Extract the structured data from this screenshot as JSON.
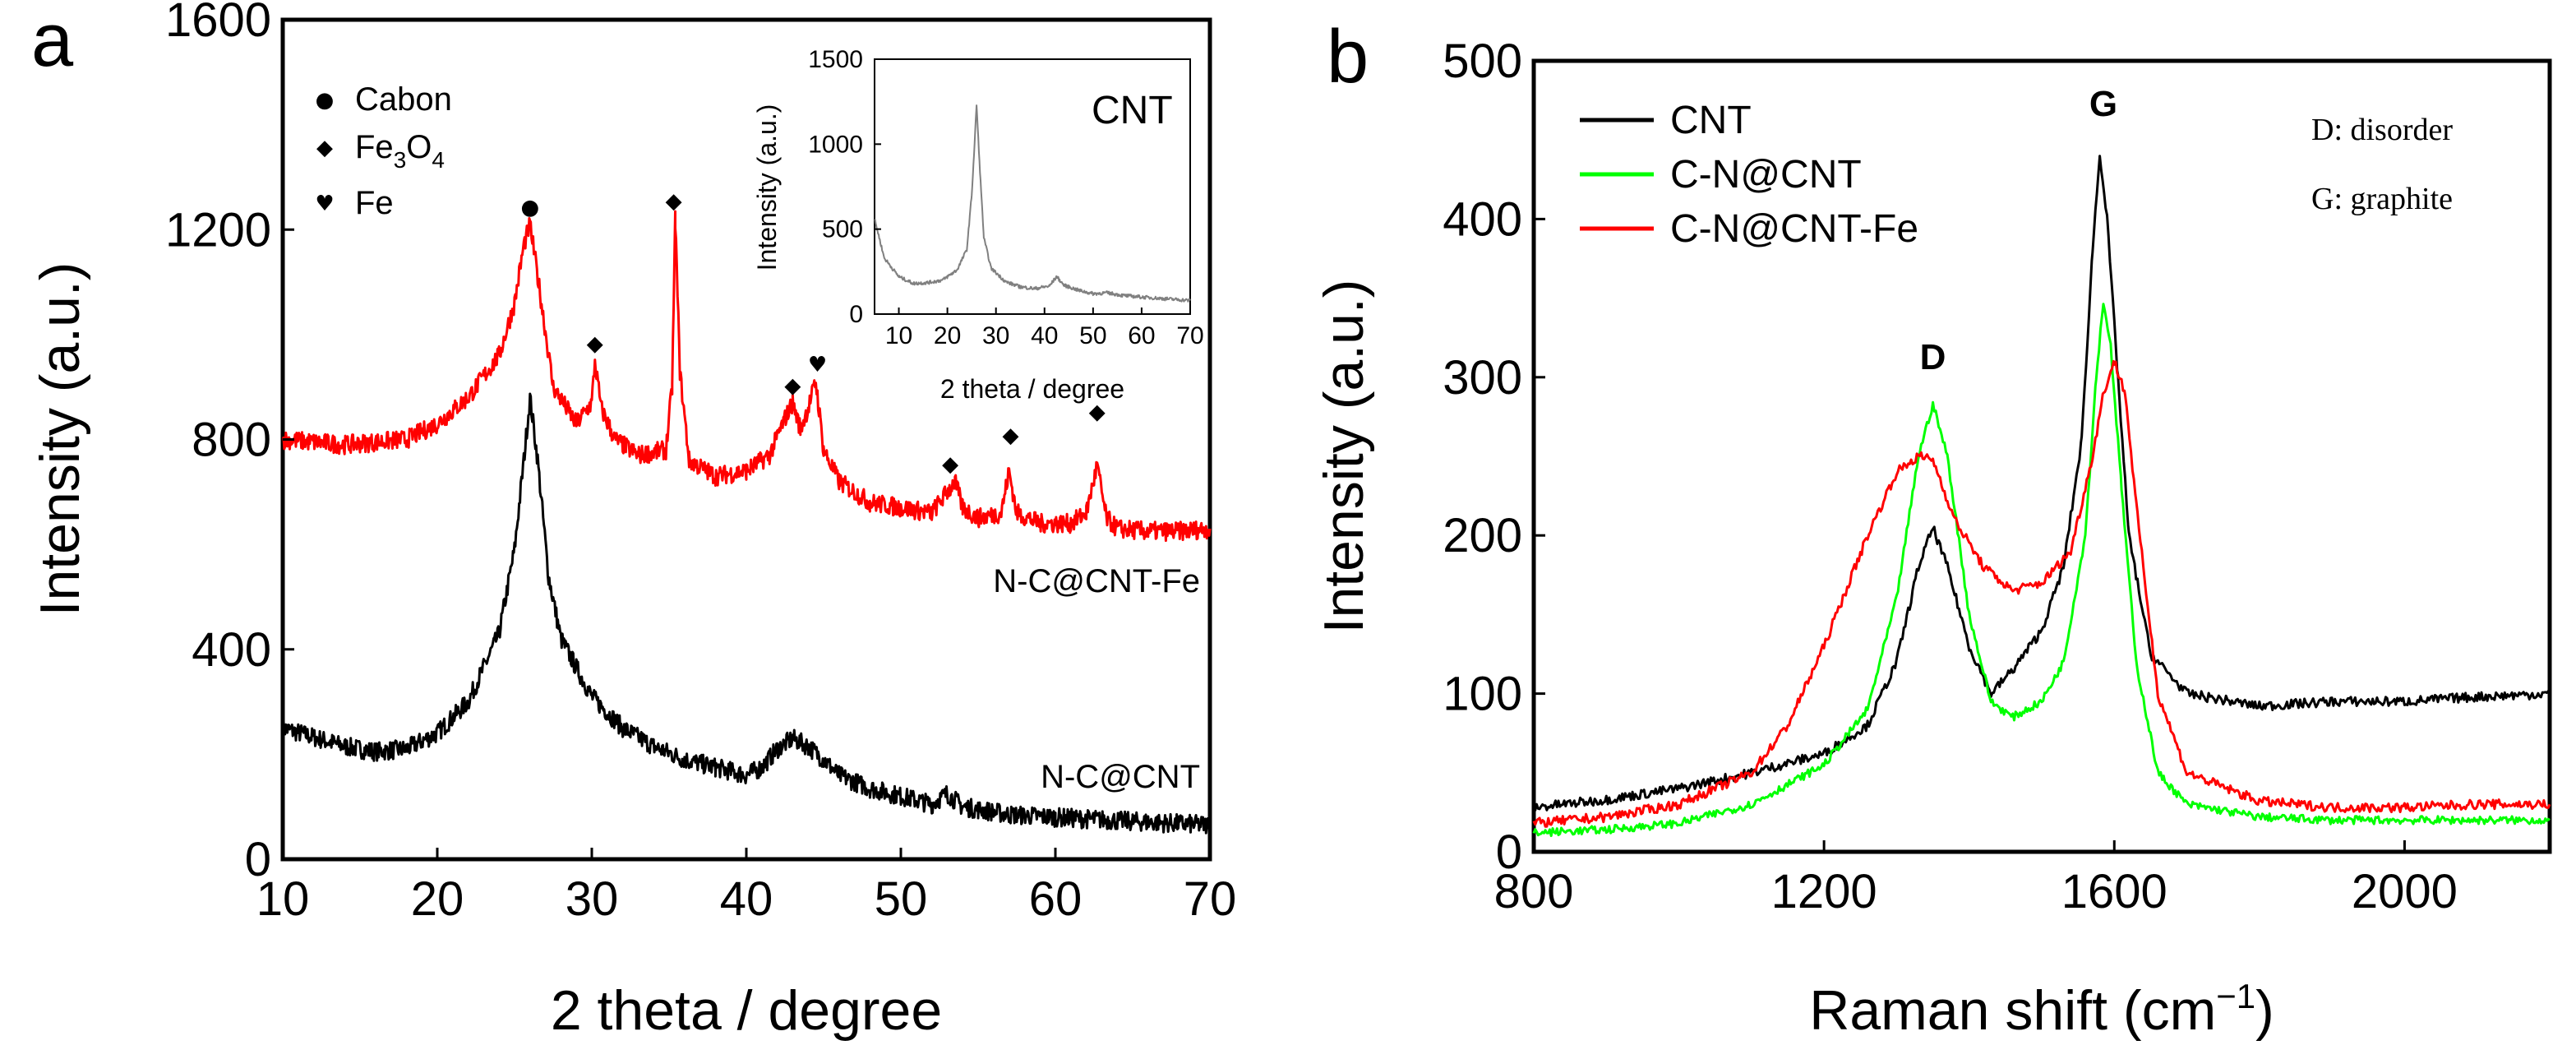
{
  "chart_data": [
    {
      "panel": "a",
      "type": "line",
      "xlabel": "2 theta / degree",
      "ylabel": "Intensity (a.u.)",
      "xlim": [
        10,
        70
      ],
      "ylim": [
        0,
        1600
      ],
      "xticks": [
        "10",
        "20",
        "30",
        "40",
        "50",
        "60",
        "70"
      ],
      "yticks": [
        "0",
        "400",
        "800",
        "1200",
        "1600"
      ],
      "legend": [
        {
          "symbol": "●",
          "label": "Cabon"
        },
        {
          "symbol": "◆",
          "label": "Fe3O4",
          "label_main": "Fe",
          "sub1": "3",
          "mid": "O",
          "sub2": "4"
        },
        {
          "symbol": "♥",
          "label": "Fe"
        }
      ],
      "series": [
        {
          "name": "N-C@CNT-Fe",
          "color": "#ff0000",
          "x": [
            10,
            14,
            18,
            20,
            22,
            24,
            25,
            25.6,
            26,
            26.6,
            27.5,
            29,
            30,
            30.2,
            30.6,
            31.5,
            33,
            34.8,
            35.2,
            35.4,
            35.7,
            36.3,
            38,
            40,
            41.5,
            42.5,
            43,
            43.5,
            44,
            44.5,
            45,
            46,
            48,
            50,
            52,
            53,
            53.5,
            54,
            55,
            56.5,
            57,
            57.5,
            59,
            61,
            62,
            62.7,
            63.3,
            64,
            66,
            68,
            70
          ],
          "y": [
            800,
            790,
            800,
            830,
            880,
            960,
            1060,
            1170,
            1210,
            1090,
            900,
            830,
            870,
            950,
            860,
            800,
            770,
            780,
            900,
            1220,
            930,
            760,
            730,
            740,
            770,
            840,
            870,
            820,
            860,
            910,
            780,
            720,
            680,
            670,
            660,
            700,
            720,
            670,
            650,
            660,
            740,
            660,
            640,
            640,
            660,
            750,
            650,
            630,
            625,
            625,
            630
          ]
        },
        {
          "name": "N-C@CNT",
          "color": "#000000",
          "x": [
            10,
            14,
            16,
            18,
            20,
            22,
            24,
            25,
            25.6,
            26,
            26.5,
            27.2,
            28,
            30,
            32,
            34,
            36,
            38,
            40,
            41,
            42,
            43,
            44,
            45,
            46,
            48,
            50,
            52,
            53,
            54,
            55,
            57,
            60,
            65,
            70
          ],
          "y": [
            250,
            215,
            205,
            210,
            240,
            300,
            430,
            590,
            760,
            880,
            760,
            540,
            420,
            310,
            250,
            215,
            190,
            175,
            160,
            175,
            210,
            230,
            215,
            190,
            160,
            135,
            120,
            105,
            125,
            100,
            95,
            85,
            80,
            72,
            65
          ]
        }
      ],
      "series_labels": [
        "N-C@CNT-Fe",
        "N-C@CNT"
      ],
      "peak_markers": [
        {
          "x": 26.0,
          "y": 1220,
          "symbol": "●",
          "phase": "Cabon"
        },
        {
          "x": 35.3,
          "y": 1232,
          "symbol": "◆",
          "phase": "Fe3O4"
        },
        {
          "x": 30.2,
          "y": 960,
          "symbol": "◆",
          "phase": "Fe3O4"
        },
        {
          "x": 43.0,
          "y": 880,
          "symbol": "◆",
          "phase": "Fe3O4"
        },
        {
          "x": 44.6,
          "y": 920,
          "symbol": "♥",
          "phase": "Fe"
        },
        {
          "x": 53.2,
          "y": 730,
          "symbol": "◆",
          "phase": "Fe3O4"
        },
        {
          "x": 57.1,
          "y": 785,
          "symbol": "◆",
          "phase": "Fe3O4"
        },
        {
          "x": 62.7,
          "y": 830,
          "symbol": "◆",
          "phase": "Fe3O4"
        }
      ],
      "inset": {
        "title": "CNT",
        "type": "line",
        "xlabel": "2 theta / degree",
        "ylabel": "Intensity (a.u.)",
        "xlim": [
          5,
          70
        ],
        "ylim": [
          0,
          1500
        ],
        "xticks": [
          "10",
          "20",
          "30",
          "40",
          "50",
          "60",
          "70"
        ],
        "yticks": [
          "0",
          "500",
          "1000",
          "1500"
        ],
        "series": [
          {
            "name": "CNT",
            "color": "#808080",
            "x": [
              5,
              7,
              10,
              13,
              16,
              19,
              22,
              24,
              25,
              25.6,
              26,
              26.6,
              27.5,
              29,
              32,
              35,
              38,
              41,
              42.5,
              44,
              47,
              50,
              53,
              56,
              60,
              65,
              70
            ],
            "y": [
              560,
              330,
              220,
              180,
              185,
              200,
              260,
              380,
              700,
              1000,
              1230,
              900,
              450,
              270,
              190,
              160,
              150,
              165,
              220,
              170,
              140,
              120,
              125,
              110,
              100,
              90,
              80
            ]
          }
        ]
      }
    },
    {
      "panel": "b",
      "type": "line",
      "xlabel": "Raman shift (cm",
      "xlabel_sup": "−1",
      "xlabel_end": ")",
      "ylabel": "Intensity (a.u.)",
      "xlim": [
        800,
        2200
      ],
      "ylim": [
        0,
        500
      ],
      "xticks": [
        "800",
        "1200",
        "1600",
        "2000"
      ],
      "yticks": [
        "0",
        "100",
        "200",
        "300",
        "400",
        "500"
      ],
      "legend": [
        "CNT",
        "C-N@CNT",
        "C-N@CNT-Fe"
      ],
      "legend_position": "top-left",
      "series": [
        {
          "name": "CNT",
          "color": "#000000",
          "x": [
            800,
            900,
            1000,
            1100,
            1200,
            1260,
            1300,
            1330,
            1350,
            1370,
            1400,
            1430,
            1460,
            1500,
            1530,
            1555,
            1570,
            1580,
            1590,
            1605,
            1620,
            1650,
            1700,
            1800,
            1900,
            2000,
            2100,
            2200
          ],
          "y": [
            28,
            33,
            40,
            50,
            62,
            80,
            120,
            180,
            205,
            180,
            130,
            100,
            115,
            140,
            180,
            260,
            380,
            442,
            400,
            300,
            200,
            125,
            100,
            92,
            95,
            95,
            98,
            100
          ]
        },
        {
          "name": "C-N@CNT",
          "color": "#00ff00",
          "x": [
            800,
            900,
            1000,
            1100,
            1200,
            1260,
            1300,
            1330,
            1350,
            1370,
            1400,
            1430,
            1460,
            1500,
            1530,
            1560,
            1575,
            1585,
            1595,
            1610,
            1630,
            1660,
            1700,
            1800,
            1900,
            2000,
            2100,
            2200
          ],
          "y": [
            12,
            14,
            18,
            30,
            55,
            90,
            160,
            250,
            283,
            250,
            150,
            95,
            85,
            95,
            120,
            200,
            300,
            348,
            320,
            230,
            120,
            50,
            30,
            22,
            20,
            20,
            20,
            20
          ]
        },
        {
          "name": "C-N@CNT-Fe",
          "color": "#ff0000",
          "x": [
            800,
            900,
            1000,
            1100,
            1150,
            1200,
            1260,
            1300,
            1330,
            1350,
            1380,
            1420,
            1460,
            1500,
            1540,
            1570,
            1585,
            1600,
            1615,
            1630,
            1660,
            1700,
            1800,
            1900,
            2000,
            2100,
            2200
          ],
          "y": [
            18,
            22,
            30,
            50,
            80,
            130,
            200,
            240,
            250,
            248,
            210,
            180,
            165,
            170,
            190,
            250,
            290,
            310,
            290,
            220,
            100,
            50,
            32,
            28,
            28,
            30,
            30
          ]
        }
      ],
      "peak_labels": [
        {
          "text": "D",
          "x": 1350,
          "y": 300
        },
        {
          "text": "G",
          "x": 1585,
          "y": 460
        }
      ],
      "notes": [
        "D: disorder",
        "G: graphite"
      ]
    }
  ]
}
